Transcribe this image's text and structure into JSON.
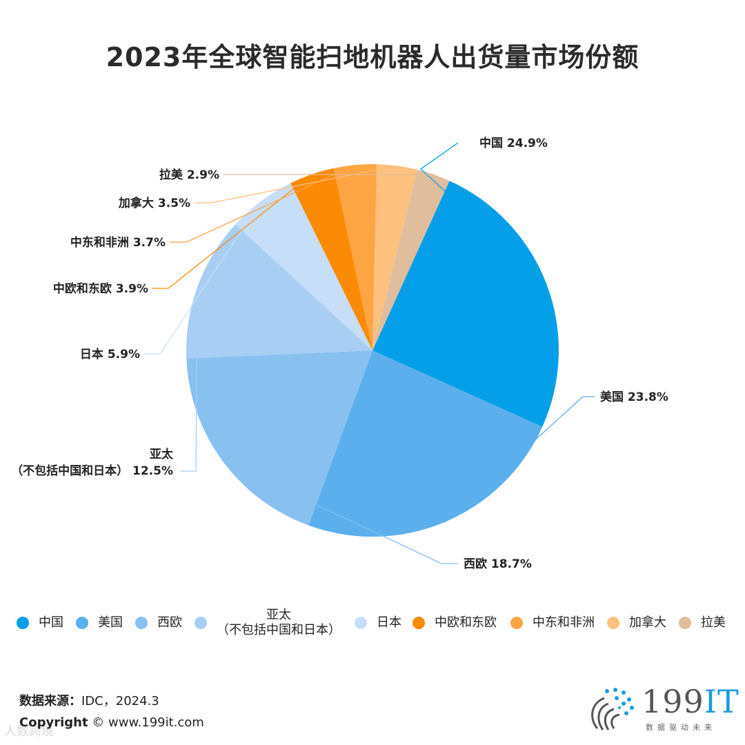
{
  "title": "2023年全球智能扫地机器人出货量市场份额",
  "chart_data": {
    "type": "pie",
    "title": "2023年全球智能扫地机器人出货量市场份额",
    "unit": "%",
    "legend_position": "bottom",
    "slices": [
      {
        "name": "中国",
        "value": 24.9,
        "label": "中国 24.9%",
        "color": "#049fe8"
      },
      {
        "name": "美国",
        "value": 23.8,
        "label": "美国 23.8%",
        "color": "#5aafec"
      },
      {
        "name": "西欧",
        "value": 18.7,
        "label": "西欧 18.7%",
        "color": "#88c0f0"
      },
      {
        "name": "亚太（不包括中国和日本）",
        "value": 12.5,
        "label": "亚太\n（不包括中国和日本） 12.5%",
        "color": "#a8cef4"
      },
      {
        "name": "日本",
        "value": 5.9,
        "label": "日本 5.9%",
        "color": "#c6def7"
      },
      {
        "name": "中欧和东欧",
        "value": 3.9,
        "label": "中欧和东欧 3.9%",
        "color": "#fb8a04"
      },
      {
        "name": "中东和非洲",
        "value": 3.7,
        "label": "中东和非洲 3.7%",
        "color": "#fda543"
      },
      {
        "name": "加拿大",
        "value": 3.5,
        "label": "加拿大 3.5%",
        "color": "#fdc07e"
      },
      {
        "name": "拉美",
        "value": 2.9,
        "label": "拉美 2.9%",
        "color": "#e0bd9c"
      }
    ]
  },
  "legend": [
    {
      "name": "中国",
      "color": "#049fe8"
    },
    {
      "name": "美国",
      "color": "#5aafec"
    },
    {
      "name": "西欧",
      "color": "#88c0f0"
    },
    {
      "name": "亚太\n（不包括中国和日本）",
      "color": "#a8cef4"
    },
    {
      "name": "日本",
      "color": "#c6def7"
    },
    {
      "name": "中欧和东欧",
      "color": "#fb8a04"
    },
    {
      "name": "中东和非洲",
      "color": "#fda543"
    },
    {
      "name": "加拿大",
      "color": "#fdc07e"
    },
    {
      "name": "拉美",
      "color": "#e0bd9c"
    }
  ],
  "source": {
    "label": "数据来源：",
    "value": "IDC，2024.3"
  },
  "copyright": {
    "label": "Copyright",
    "value": "© www.199it.com"
  },
  "watermark": "人数跨境",
  "logo": {
    "text_main": "199",
    "text_accent": "IT",
    "tagline": "数据驱动未来"
  }
}
